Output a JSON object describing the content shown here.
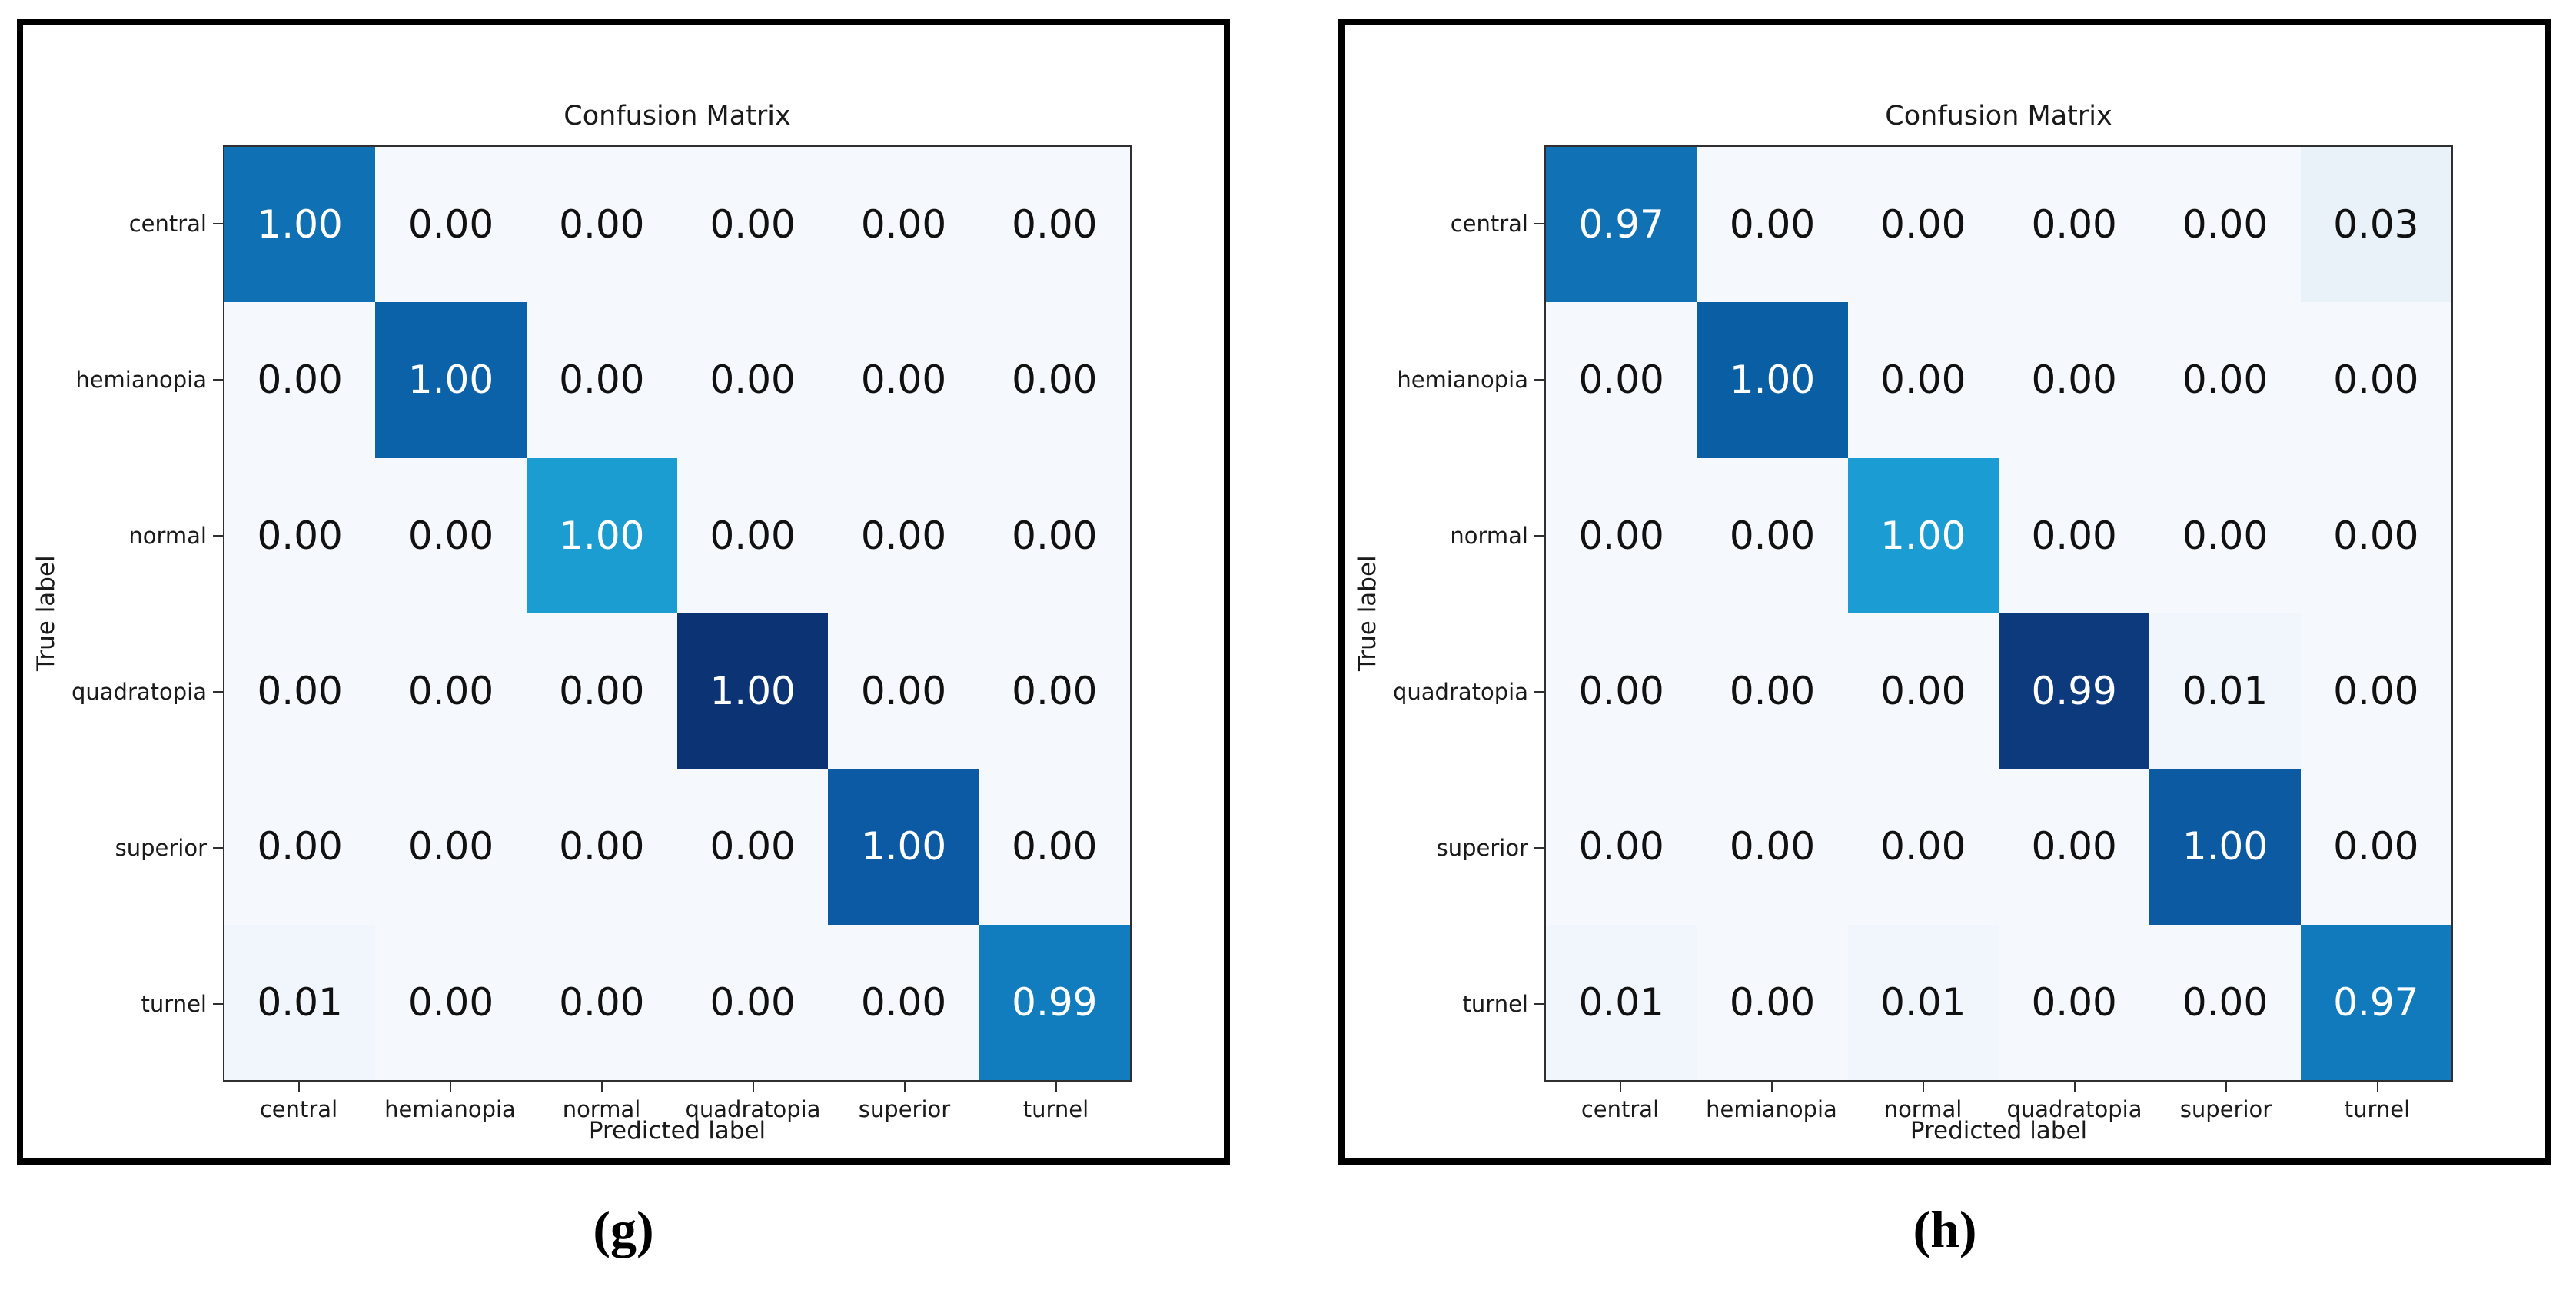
{
  "axes": {
    "title": "Confusion Matrix",
    "xlabel": "Predicted label",
    "ylabel": "True label"
  },
  "classes": [
    "central",
    "hemianopia",
    "normal",
    "quadratopia",
    "superior",
    "turnel"
  ],
  "panels": [
    {
      "caption": "(g)",
      "cells": [
        [
          "1.00",
          "0.00",
          "0.00",
          "0.00",
          "0.00",
          "0.00"
        ],
        [
          "0.00",
          "1.00",
          "0.00",
          "0.00",
          "0.00",
          "0.00"
        ],
        [
          "0.00",
          "0.00",
          "1.00",
          "0.00",
          "0.00",
          "0.00"
        ],
        [
          "0.00",
          "0.00",
          "0.00",
          "1.00",
          "0.00",
          "0.00"
        ],
        [
          "0.00",
          "0.00",
          "0.00",
          "0.00",
          "1.00",
          "0.00"
        ],
        [
          "0.01",
          "0.00",
          "0.00",
          "0.00",
          "0.00",
          "0.99"
        ]
      ],
      "colors": [
        [
          "#1070b4",
          "#f5f9fd",
          "#f5f9fd",
          "#f5f9fd",
          "#f5f9fd",
          "#f5f9fd"
        ],
        [
          "#f5f9fd",
          "#0c62a8",
          "#f5f9fd",
          "#f5f9fd",
          "#f5f9fd",
          "#f5f9fd"
        ],
        [
          "#f5f9fd",
          "#f5f9fd",
          "#1b9dd2",
          "#f5f9fd",
          "#f5f9fd",
          "#f5f9fd"
        ],
        [
          "#f5f9fd",
          "#f5f9fd",
          "#f5f9fd",
          "#0c3474",
          "#f5f9fd",
          "#f5f9fd"
        ],
        [
          "#f5f9fd",
          "#f5f9fd",
          "#f5f9fd",
          "#f5f9fd",
          "#0b5aa3",
          "#f5f9fd"
        ],
        [
          "#f0f6fc",
          "#f5f9fd",
          "#f5f9fd",
          "#f5f9fd",
          "#f5f9fd",
          "#127dbe"
        ]
      ]
    },
    {
      "caption": "(h)",
      "cells": [
        [
          "0.97",
          "0.00",
          "0.00",
          "0.00",
          "0.00",
          "0.03"
        ],
        [
          "0.00",
          "1.00",
          "0.00",
          "0.00",
          "0.00",
          "0.00"
        ],
        [
          "0.00",
          "0.00",
          "1.00",
          "0.00",
          "0.00",
          "0.00"
        ],
        [
          "0.00",
          "0.00",
          "0.00",
          "0.99",
          "0.01",
          "0.00"
        ],
        [
          "0.00",
          "0.00",
          "0.00",
          "0.00",
          "1.00",
          "0.00"
        ],
        [
          "0.01",
          "0.00",
          "0.01",
          "0.00",
          "0.00",
          "0.97"
        ]
      ],
      "colors": [
        [
          "#1171b5",
          "#f5f9fd",
          "#f5f9fd",
          "#f5f9fd",
          "#f5f9fd",
          "#e9f1f9"
        ],
        [
          "#f5f9fd",
          "#0a5ea4",
          "#f5f9fd",
          "#f5f9fd",
          "#f5f9fd",
          "#f5f9fd"
        ],
        [
          "#f5f9fd",
          "#f5f9fd",
          "#1b9dd4",
          "#f5f9fd",
          "#f5f9fd",
          "#f5f9fd"
        ],
        [
          "#f5f9fd",
          "#f5f9fd",
          "#f5f9fd",
          "#0c3a7c",
          "#f0f6fc",
          "#f5f9fd"
        ],
        [
          "#f5f9fd",
          "#f5f9fd",
          "#f5f9fd",
          "#f5f9fd",
          "#0b5aa2",
          "#f5f9fd"
        ],
        [
          "#f0f6fc",
          "#f5f9fd",
          "#f0f6fc",
          "#f5f9fd",
          "#f5f9fd",
          "#107abc"
        ]
      ]
    }
  ],
  "chart_data": [
    {
      "type": "heatmap",
      "panel_label": "(g)",
      "title": "Confusion Matrix",
      "xlabel": "Predicted label",
      "ylabel": "True label",
      "x_categories": [
        "central",
        "hemianopia",
        "normal",
        "quadratopia",
        "superior",
        "turnel"
      ],
      "y_categories": [
        "central",
        "hemianopia",
        "normal",
        "quadratopia",
        "superior",
        "turnel"
      ],
      "matrix": [
        [
          1.0,
          0.0,
          0.0,
          0.0,
          0.0,
          0.0
        ],
        [
          0.0,
          1.0,
          0.0,
          0.0,
          0.0,
          0.0
        ],
        [
          0.0,
          0.0,
          1.0,
          0.0,
          0.0,
          0.0
        ],
        [
          0.0,
          0.0,
          0.0,
          1.0,
          0.0,
          0.0
        ],
        [
          0.0,
          0.0,
          0.0,
          0.0,
          1.0,
          0.0
        ],
        [
          0.01,
          0.0,
          0.0,
          0.0,
          0.0,
          0.99
        ]
      ],
      "colormap": "Blues",
      "value_range": [
        0,
        1
      ],
      "legend": "none",
      "grid": "off"
    },
    {
      "type": "heatmap",
      "panel_label": "(h)",
      "title": "Confusion Matrix",
      "xlabel": "Predicted label",
      "ylabel": "True label",
      "x_categories": [
        "central",
        "hemianopia",
        "normal",
        "quadratopia",
        "superior",
        "turnel"
      ],
      "y_categories": [
        "central",
        "hemianopia",
        "normal",
        "quadratopia",
        "superior",
        "turnel"
      ],
      "matrix": [
        [
          0.97,
          0.0,
          0.0,
          0.0,
          0.0,
          0.03
        ],
        [
          0.0,
          1.0,
          0.0,
          0.0,
          0.0,
          0.0
        ],
        [
          0.0,
          0.0,
          1.0,
          0.0,
          0.0,
          0.0
        ],
        [
          0.0,
          0.0,
          0.0,
          0.99,
          0.01,
          0.0
        ],
        [
          0.0,
          0.0,
          0.0,
          0.0,
          1.0,
          0.0
        ],
        [
          0.01,
          0.0,
          0.01,
          0.0,
          0.0,
          0.97
        ]
      ],
      "colormap": "Blues",
      "value_range": [
        0,
        1
      ],
      "legend": "none",
      "grid": "off"
    }
  ]
}
